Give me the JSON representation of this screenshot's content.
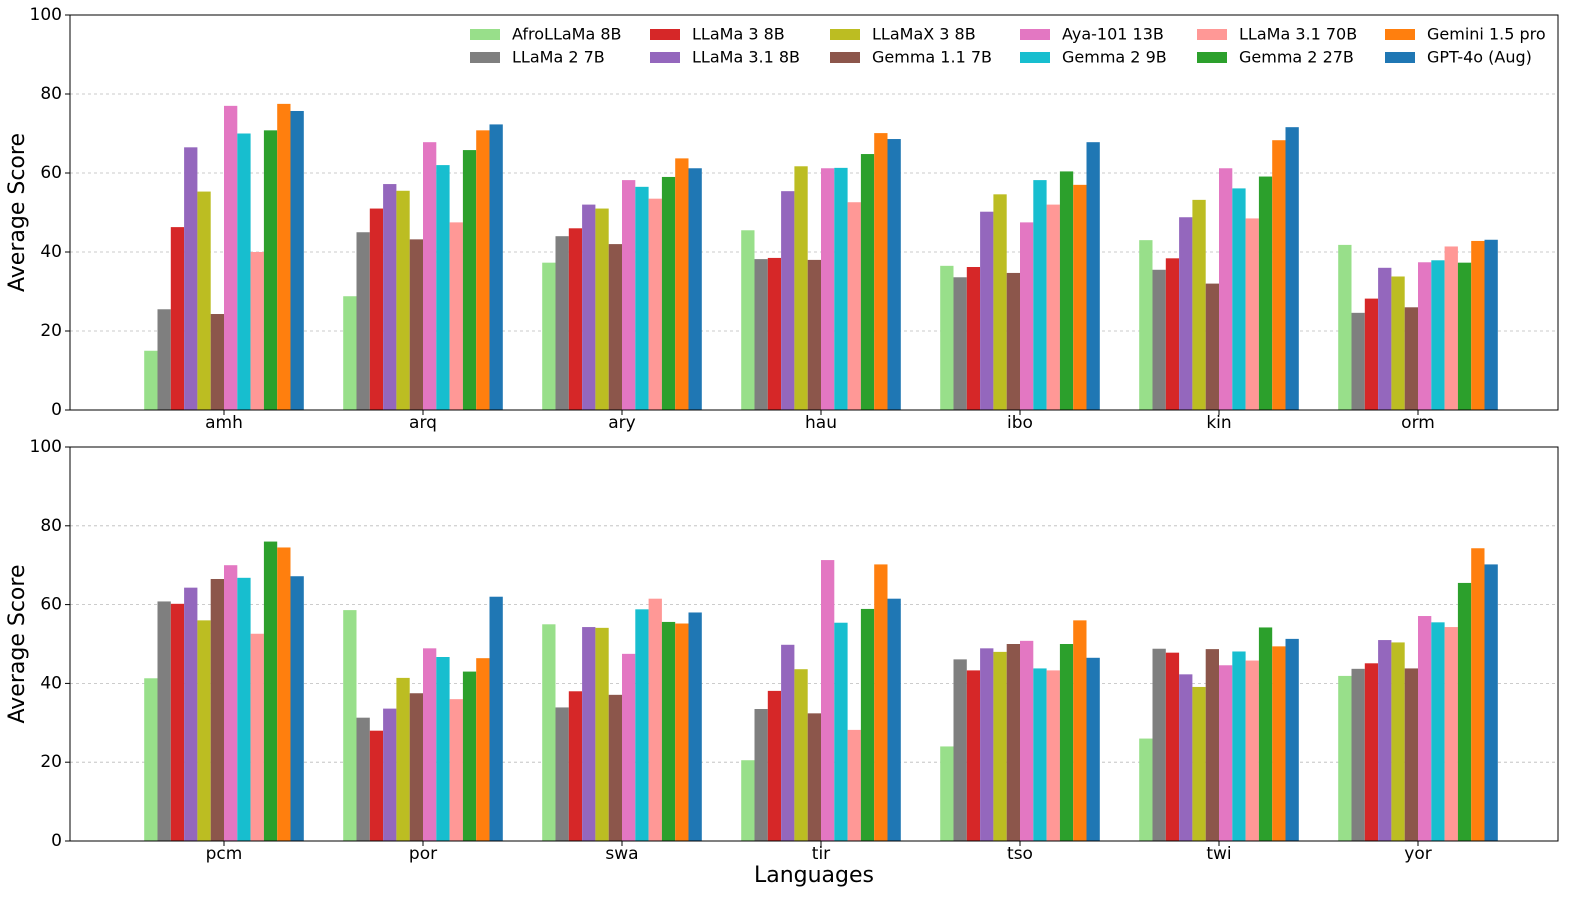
{
  "chart_data": [
    {
      "type": "bar",
      "ylabel": "Average Score",
      "categories": [
        "amh",
        "arq",
        "ary",
        "hau",
        "ibo",
        "kin",
        "orm"
      ],
      "ylim": [
        0,
        100
      ],
      "yticks": [
        0,
        20,
        40,
        60,
        80,
        100
      ],
      "grid": true,
      "legend": "upper right",
      "series": [
        {
          "name": "AfroLLaMa 8B",
          "color": "#98df8a",
          "values": [
            15,
            28.8,
            37.3,
            45.5,
            36.5,
            43,
            41.8
          ]
        },
        {
          "name": "LLaMa 2 7B",
          "color": "#7f7f7f",
          "values": [
            25.5,
            45,
            44,
            38.2,
            33.6,
            35.5,
            24.6
          ]
        },
        {
          "name": "LLaMa 3 8B",
          "color": "#d62728",
          "values": [
            46.3,
            51,
            46,
            38.5,
            36.2,
            38.4,
            28.2
          ]
        },
        {
          "name": "LLaMa 3.1 8B",
          "color": "#9467bd",
          "values": [
            66.5,
            57.2,
            52,
            55.4,
            50.2,
            48.8,
            36
          ]
        },
        {
          "name": "LLaMaX 3 8B",
          "color": "#bcbd22",
          "values": [
            55.3,
            55.5,
            51,
            61.7,
            54.6,
            53.2,
            33.8
          ]
        },
        {
          "name": "Gemma 1.1 7B",
          "color": "#8c564b",
          "values": [
            24.3,
            43.2,
            42,
            38,
            34.7,
            32,
            26
          ]
        },
        {
          "name": "Aya-101 13B",
          "color": "#e377c2",
          "values": [
            77,
            67.8,
            58.2,
            61.2,
            47.5,
            61.2,
            37.4
          ]
        },
        {
          "name": "Gemma 2 9B",
          "color": "#17becf",
          "values": [
            70,
            62,
            56.5,
            61.3,
            58.2,
            56.1,
            37.9
          ]
        },
        {
          "name": "LLaMa 3.1 70B",
          "color": "#ff9896",
          "values": [
            40,
            47.5,
            53.5,
            52.6,
            52,
            48.5,
            41.4
          ]
        },
        {
          "name": "Gemma 2 27B",
          "color": "#2ca02c",
          "values": [
            70.8,
            65.8,
            59,
            64.8,
            60.4,
            59.1,
            37.3
          ]
        },
        {
          "name": "Gemini 1.5 pro",
          "color": "#ff7f0e",
          "values": [
            77.5,
            70.8,
            63.7,
            70.1,
            57,
            68.3,
            42.8
          ]
        },
        {
          "name": "GPT-4o (Aug)",
          "color": "#1f77b4",
          "values": [
            75.7,
            72.3,
            61.2,
            68.6,
            67.8,
            71.6,
            43.1
          ]
        }
      ]
    },
    {
      "type": "bar",
      "ylabel": "Average Score",
      "xlabel": "Languages",
      "categories": [
        "pcm",
        "por",
        "swa",
        "tir",
        "tso",
        "twi",
        "yor"
      ],
      "ylim": [
        0,
        100
      ],
      "yticks": [
        0,
        20,
        40,
        60,
        80,
        100
      ],
      "grid": true,
      "series": [
        {
          "color": "#98df8a",
          "values": [
            41.3,
            58.6,
            55,
            20.5,
            24,
            26,
            41.9
          ]
        },
        {
          "color": "#7f7f7f",
          "values": [
            60.8,
            31.3,
            33.9,
            33.5,
            46.1,
            48.8,
            43.7
          ]
        },
        {
          "color": "#d62728",
          "values": [
            60.2,
            28,
            38,
            38.1,
            43.3,
            47.8,
            45.1
          ]
        },
        {
          "color": "#9467bd",
          "values": [
            64.3,
            33.6,
            54.3,
            49.8,
            48.9,
            42.3,
            51
          ]
        },
        {
          "color": "#bcbd22",
          "values": [
            56,
            41.4,
            54.1,
            43.6,
            48,
            39.1,
            50.4
          ]
        },
        {
          "color": "#8c564b",
          "values": [
            66.5,
            37.5,
            37.1,
            32.4,
            50,
            48.7,
            43.8
          ]
        },
        {
          "color": "#e377c2",
          "values": [
            70,
            48.9,
            47.5,
            71.3,
            50.8,
            44.6,
            57.1
          ]
        },
        {
          "color": "#17becf",
          "values": [
            66.8,
            46.7,
            58.8,
            55.4,
            43.8,
            48.1,
            55.5
          ]
        },
        {
          "color": "#ff9896",
          "values": [
            52.6,
            36,
            61.5,
            28.2,
            43.3,
            45.8,
            54.3
          ]
        },
        {
          "color": "#2ca02c",
          "values": [
            76,
            43,
            55.6,
            58.9,
            50,
            54.2,
            65.5
          ]
        },
        {
          "color": "#ff7f0e",
          "values": [
            74.5,
            46.4,
            55.2,
            70.2,
            56,
            49.4,
            74.3
          ]
        },
        {
          "color": "#1f77b4",
          "values": [
            67.2,
            62,
            58,
            61.5,
            46.5,
            51.3,
            70.2
          ]
        }
      ]
    }
  ]
}
